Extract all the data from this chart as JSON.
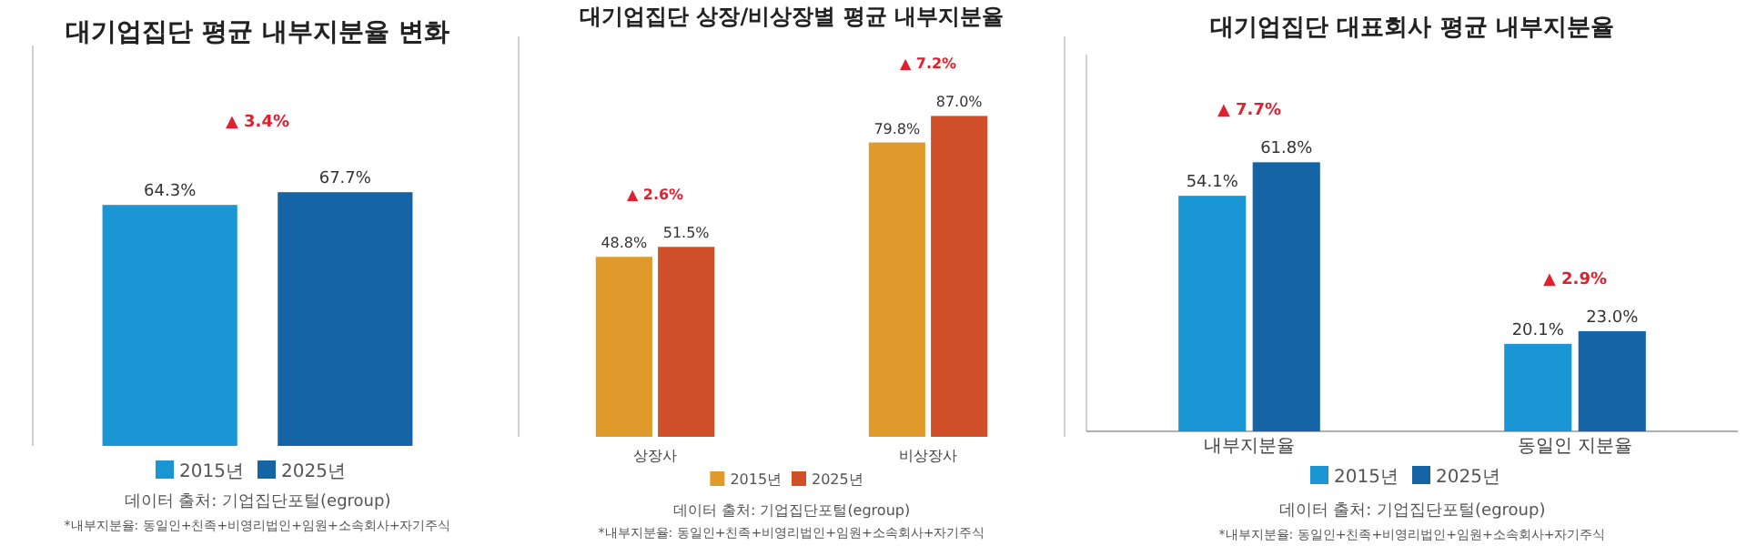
{
  "chart_data": [
    {
      "type": "bar",
      "title": "대기업집단 평균 내부지분율 변화",
      "categories": [
        null
      ],
      "series": [
        {
          "name": "2015년",
          "color": "#1a96d4",
          "values": [
            64.3
          ],
          "value_labels": [
            "64.3%"
          ]
        },
        {
          "name": "2025년",
          "color": "#1565a6",
          "values": [
            67.7
          ],
          "value_labels": [
            "67.7%"
          ]
        }
      ],
      "legend": "bottom",
      "annotations": [
        "▲ 3.4%",
        "데이터 출처: 기업집단포털(egroup)",
        "*내부지분율: 동일인+친족+비영리법인+임원+소속회사+자기주식"
      ]
    },
    {
      "type": "bar",
      "title": "대기업집단 상장/비상장별 평균 내부지분율",
      "categories": [
        "상장사",
        "비상장사"
      ],
      "series": [
        {
          "name": "2015년",
          "color": "#e09a2c",
          "values": [
            48.8,
            79.8
          ],
          "value_labels": [
            "48.8%",
            "79.8%"
          ]
        },
        {
          "name": "2025년",
          "color": "#d0502a",
          "values": [
            51.5,
            87.0
          ],
          "value_labels": [
            "51.5%",
            "87.0%"
          ]
        }
      ],
      "legend": "bottom",
      "annotations": [
        "▲ 2.6%",
        "▲ 7.2%",
        "데이터 출처: 기업집단포털(egroup)",
        "*내부지분율: 동일인+친족+비영리법인+임원+소속회사+자기주식"
      ]
    },
    {
      "type": "bar",
      "title": "대기업집단 대표회사 평균 내부지분율",
      "categories": [
        "내부지분율",
        "동일인 지분율"
      ],
      "series": [
        {
          "name": "2015년",
          "color": "#1a96d4",
          "values": [
            54.1,
            20.1
          ],
          "value_labels": [
            "54.1%",
            "20.1%"
          ]
        },
        {
          "name": "2025년",
          "color": "#1565a6",
          "values": [
            61.8,
            23.0
          ],
          "value_labels": [
            "61.8%",
            "23.0%"
          ]
        }
      ],
      "legend": "bottom",
      "annotations": [
        "▲ 7.7%",
        "▲ 2.9%",
        "데이터 출처: 기업집단포털(egroup)",
        "*내부지분율: 동일인+친족+비영리법인+임원+소속회사+자기주식"
      ]
    }
  ]
}
